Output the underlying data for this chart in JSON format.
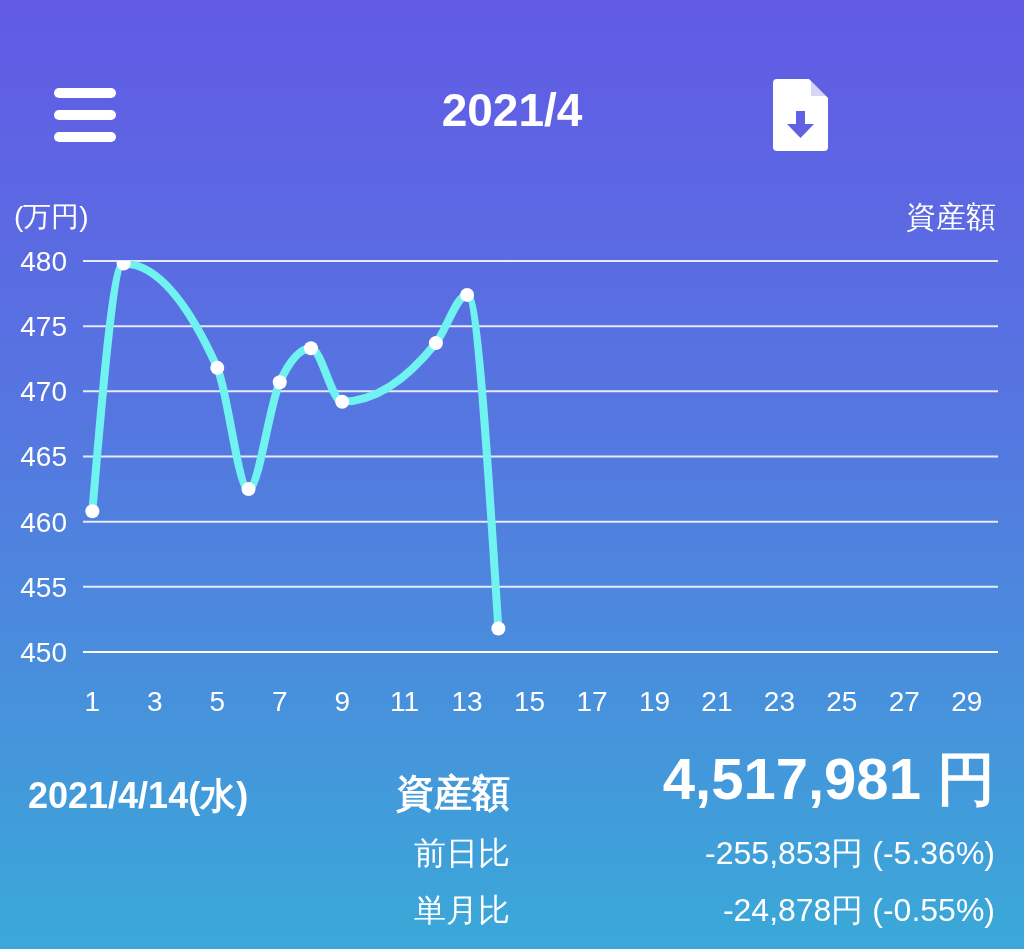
{
  "chart_data": {
    "type": "line",
    "title": "2021/4",
    "ylabel": "(万円)",
    "x": [
      1,
      2,
      5,
      6,
      7,
      8,
      9,
      12,
      13,
      14
    ],
    "series": [
      {
        "name": "資産額",
        "color": "#6ff2f0",
        "values": [
          460.8,
          479.8,
          471.8,
          462.5,
          470.7,
          473.3,
          469.2,
          473.7,
          477.4,
          451.8
        ]
      }
    ],
    "xlim": [
      0.7,
      30
    ],
    "xticks": [
      1,
      3,
      5,
      7,
      9,
      11,
      13,
      15,
      17,
      19,
      21,
      23,
      25,
      27,
      29
    ],
    "ylim": [
      450,
      480
    ],
    "yticks": [
      450,
      455,
      460,
      465,
      470,
      475,
      480
    ],
    "grid": "y",
    "legend": "top right",
    "marker": "circle",
    "line_style": "solid",
    "annotations": [
      "2021/4/14(水)",
      "資産額",
      "4,517,981 円",
      "前日比",
      "-255,853円 (-5.36%)",
      "単月比",
      "-24,878円 (-0.55%)"
    ]
  }
}
